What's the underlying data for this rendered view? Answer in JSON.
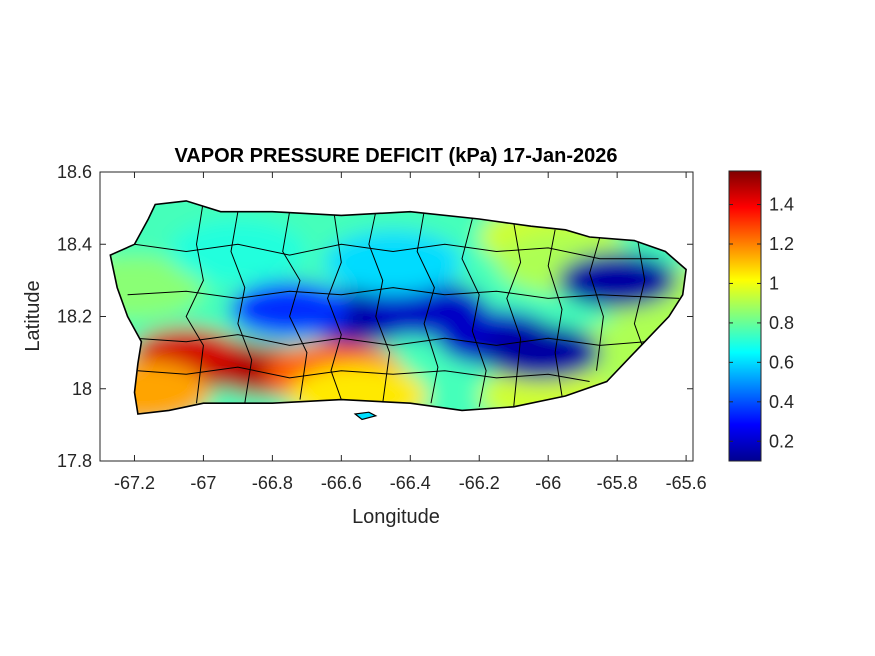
{
  "chart_data": {
    "type": "heatmap",
    "title": "VAPOR PRESSURE DEFICIT (kPa) 17-Jan-2026",
    "xlabel": "Longitude",
    "ylabel": "Latitude",
    "xlim": [
      -67.3,
      -65.58
    ],
    "ylim": [
      17.8,
      18.6
    ],
    "xticks": [
      -67.2,
      -67,
      -66.8,
      -66.6,
      -66.4,
      -66.2,
      -66,
      -65.8,
      -65.6
    ],
    "xtick_labels": [
      "-67.2",
      "-67",
      "-66.8",
      "-66.6",
      "-66.4",
      "-66.2",
      "-66",
      "-65.8",
      "-65.6"
    ],
    "yticks": [
      18.6,
      18.4,
      18.2,
      18,
      17.8
    ],
    "ytick_labels": [
      "18.6",
      "18.4",
      "18.2",
      "18",
      "17.8"
    ],
    "colorbar": {
      "colormap": "jet",
      "range": [
        0.1,
        1.57
      ],
      "ticks": [
        1.4,
        1.2,
        1,
        0.8,
        0.6,
        0.4,
        0.2
      ],
      "tick_labels": [
        "1.4",
        "1.2",
        "1",
        "0.8",
        "0.6",
        "0.4",
        "0.2"
      ],
      "unit": "kPa"
    },
    "field_blobs": [
      {
        "lon": -66.95,
        "lat": 18.07,
        "value": 1.55
      },
      {
        "lon": -66.82,
        "lat": 18.05,
        "value": 1.5
      },
      {
        "lon": -67.05,
        "lat": 18.1,
        "value": 1.45
      },
      {
        "lon": -66.62,
        "lat": 18.04,
        "value": 1.25
      },
      {
        "lon": -67.18,
        "lat": 17.99,
        "value": 1.15
      },
      {
        "lon": -66.55,
        "lat": 17.98,
        "value": 1.05
      },
      {
        "lon": -66.0,
        "lat": 17.98,
        "value": 0.95
      },
      {
        "lon": -65.75,
        "lat": 18.1,
        "value": 0.9
      },
      {
        "lon": -66.0,
        "lat": 18.42,
        "value": 0.95
      },
      {
        "lon": -65.95,
        "lat": 18.35,
        "value": 0.9
      },
      {
        "lon": -67.2,
        "lat": 18.28,
        "value": 0.85
      },
      {
        "lon": -65.65,
        "lat": 18.25,
        "value": 0.9
      },
      {
        "lon": -66.55,
        "lat": 18.2,
        "value": 0.15
      },
      {
        "lon": -66.35,
        "lat": 18.22,
        "value": 0.2
      },
      {
        "lon": -66.15,
        "lat": 18.14,
        "value": 0.2
      },
      {
        "lon": -66.02,
        "lat": 18.1,
        "value": 0.15
      },
      {
        "lon": -66.75,
        "lat": 18.22,
        "value": 0.35
      },
      {
        "lon": -65.8,
        "lat": 18.3,
        "value": 0.15
      },
      {
        "lon": -66.45,
        "lat": 18.35,
        "value": 0.6
      },
      {
        "lon": -66.9,
        "lat": 18.38,
        "value": 0.7
      }
    ]
  }
}
